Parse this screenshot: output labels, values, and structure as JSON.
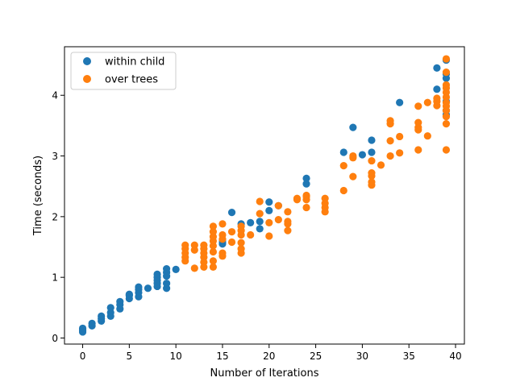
{
  "chart_data": {
    "type": "scatter",
    "title": "",
    "xlabel": "Number of Iterations",
    "ylabel": "Time (seconds)",
    "xlim": [
      -1.95,
      40.95
    ],
    "ylim": [
      -0.1,
      4.8
    ],
    "xticks": [
      0,
      5,
      10,
      15,
      20,
      25,
      30,
      35,
      40
    ],
    "yticks": [
      0,
      1,
      2,
      3,
      4
    ],
    "grid": false,
    "legend": {
      "placement": "top-left"
    },
    "series": [
      {
        "name": "within child",
        "color": "#1f77b4",
        "points": [
          [
            0,
            0.1
          ],
          [
            0,
            0.12
          ],
          [
            0,
            0.14
          ],
          [
            0,
            0.16
          ],
          [
            1,
            0.2
          ],
          [
            1,
            0.24
          ],
          [
            2,
            0.28
          ],
          [
            2,
            0.32
          ],
          [
            2,
            0.36
          ],
          [
            3,
            0.36
          ],
          [
            3,
            0.42
          ],
          [
            3,
            0.5
          ],
          [
            4,
            0.48
          ],
          [
            4,
            0.55
          ],
          [
            4,
            0.6
          ],
          [
            5,
            0.65
          ],
          [
            5,
            0.7
          ],
          [
            5,
            0.72
          ],
          [
            6,
            0.68
          ],
          [
            6,
            0.75
          ],
          [
            6,
            0.8
          ],
          [
            6,
            0.84
          ],
          [
            7,
            0.82
          ],
          [
            8,
            0.85
          ],
          [
            8,
            0.9
          ],
          [
            8,
            0.95
          ],
          [
            8,
            1.0
          ],
          [
            8,
            1.05
          ],
          [
            9,
            0.82
          ],
          [
            9,
            0.9
          ],
          [
            9,
            1.02
          ],
          [
            9,
            1.08
          ],
          [
            9,
            1.14
          ],
          [
            10,
            1.13
          ],
          [
            15,
            1.55
          ],
          [
            15,
            1.58
          ],
          [
            15,
            1.62
          ],
          [
            16,
            2.07
          ],
          [
            17,
            1.88
          ],
          [
            18,
            1.9
          ],
          [
            19,
            1.8
          ],
          [
            19,
            1.92
          ],
          [
            20,
            2.1
          ],
          [
            20,
            2.24
          ],
          [
            21,
            2.18
          ],
          [
            24,
            2.54
          ],
          [
            24,
            2.63
          ],
          [
            28,
            3.06
          ],
          [
            29,
            3.47
          ],
          [
            30,
            3.02
          ],
          [
            31,
            3.06
          ],
          [
            31,
            3.26
          ],
          [
            34,
            3.88
          ],
          [
            38,
            4.1
          ],
          [
            38,
            4.45
          ],
          [
            39,
            3.68
          ],
          [
            39,
            3.75
          ],
          [
            39,
            3.9
          ],
          [
            39,
            4.28
          ],
          [
            39,
            4.35
          ],
          [
            39,
            4.58
          ]
        ]
      },
      {
        "name": "over trees",
        "color": "#ff7f0e",
        "points": [
          [
            11,
            1.27
          ],
          [
            11,
            1.33
          ],
          [
            11,
            1.4
          ],
          [
            11,
            1.47
          ],
          [
            11,
            1.53
          ],
          [
            12,
            1.15
          ],
          [
            12,
            1.45
          ],
          [
            12,
            1.53
          ],
          [
            13,
            1.17
          ],
          [
            13,
            1.25
          ],
          [
            13,
            1.33
          ],
          [
            13,
            1.4
          ],
          [
            13,
            1.47
          ],
          [
            13,
            1.53
          ],
          [
            14,
            1.17
          ],
          [
            14,
            1.27
          ],
          [
            14,
            1.42
          ],
          [
            14,
            1.52
          ],
          [
            14,
            1.6
          ],
          [
            14,
            1.67
          ],
          [
            14,
            1.75
          ],
          [
            14,
            1.84
          ],
          [
            15,
            1.35
          ],
          [
            15,
            1.4
          ],
          [
            15,
            1.63
          ],
          [
            15,
            1.7
          ],
          [
            15,
            1.88
          ],
          [
            16,
            1.58
          ],
          [
            16,
            1.75
          ],
          [
            17,
            1.4
          ],
          [
            17,
            1.47
          ],
          [
            17,
            1.57
          ],
          [
            17,
            1.7
          ],
          [
            17,
            1.77
          ],
          [
            17,
            1.84
          ],
          [
            18,
            1.7
          ],
          [
            19,
            2.05
          ],
          [
            19,
            2.25
          ],
          [
            20,
            1.68
          ],
          [
            20,
            1.9
          ],
          [
            21,
            1.95
          ],
          [
            21,
            2.18
          ],
          [
            22,
            1.77
          ],
          [
            22,
            1.88
          ],
          [
            22,
            1.92
          ],
          [
            22,
            2.08
          ],
          [
            23,
            2.28
          ],
          [
            23,
            2.3
          ],
          [
            24,
            2.15
          ],
          [
            24,
            2.28
          ],
          [
            24,
            2.33
          ],
          [
            24,
            2.35
          ],
          [
            26,
            2.08
          ],
          [
            26,
            2.15
          ],
          [
            26,
            2.22
          ],
          [
            26,
            2.3
          ],
          [
            28,
            2.43
          ],
          [
            28,
            2.84
          ],
          [
            29,
            2.66
          ],
          [
            29,
            2.97
          ],
          [
            29,
            3.0
          ],
          [
            31,
            2.52
          ],
          [
            31,
            2.57
          ],
          [
            31,
            2.67
          ],
          [
            31,
            2.72
          ],
          [
            31,
            2.92
          ],
          [
            32,
            2.85
          ],
          [
            33,
            3.0
          ],
          [
            33,
            3.25
          ],
          [
            33,
            3.53
          ],
          [
            33,
            3.58
          ],
          [
            34,
            3.05
          ],
          [
            34,
            3.32
          ],
          [
            36,
            3.1
          ],
          [
            36,
            3.43
          ],
          [
            36,
            3.47
          ],
          [
            36,
            3.55
          ],
          [
            36,
            3.82
          ],
          [
            37,
            3.33
          ],
          [
            37,
            3.88
          ],
          [
            38,
            3.83
          ],
          [
            38,
            3.9
          ],
          [
            38,
            3.95
          ],
          [
            39,
            3.1
          ],
          [
            39,
            3.53
          ],
          [
            39,
            3.65
          ],
          [
            39,
            3.75
          ],
          [
            39,
            3.82
          ],
          [
            39,
            3.88
          ],
          [
            39,
            3.97
          ],
          [
            39,
            4.05
          ],
          [
            39,
            4.12
          ],
          [
            39,
            4.17
          ],
          [
            39,
            4.38
          ],
          [
            39,
            4.6
          ]
        ]
      }
    ]
  }
}
